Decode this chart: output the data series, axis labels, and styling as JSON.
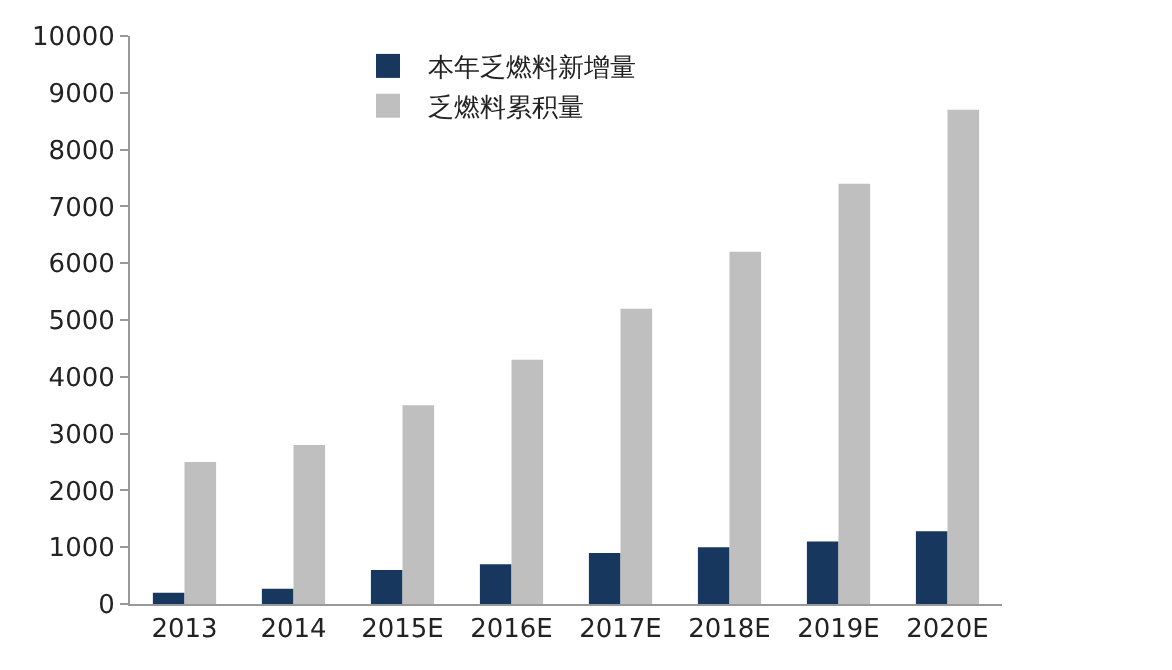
{
  "chart_data": {
    "type": "bar",
    "categories": [
      "2013",
      "2014",
      "2015E",
      "2016E",
      "2017E",
      "2018E",
      "2019E",
      "2020E"
    ],
    "series": [
      {
        "name": "本年乏燃料新增量",
        "color": "#17375e",
        "values": [
          200,
          270,
          600,
          700,
          900,
          1000,
          1100,
          1280
        ]
      },
      {
        "name": "乏燃料累积量",
        "color": "#bfbfbf",
        "values": [
          2500,
          2800,
          3500,
          4300,
          5200,
          6200,
          7400,
          8700
        ]
      }
    ],
    "ylim": [
      0,
      10000
    ],
    "yticks": [
      0,
      1000,
      2000,
      3000,
      4000,
      5000,
      6000,
      7000,
      8000,
      9000,
      10000
    ],
    "grid": false,
    "legend": "top left"
  }
}
